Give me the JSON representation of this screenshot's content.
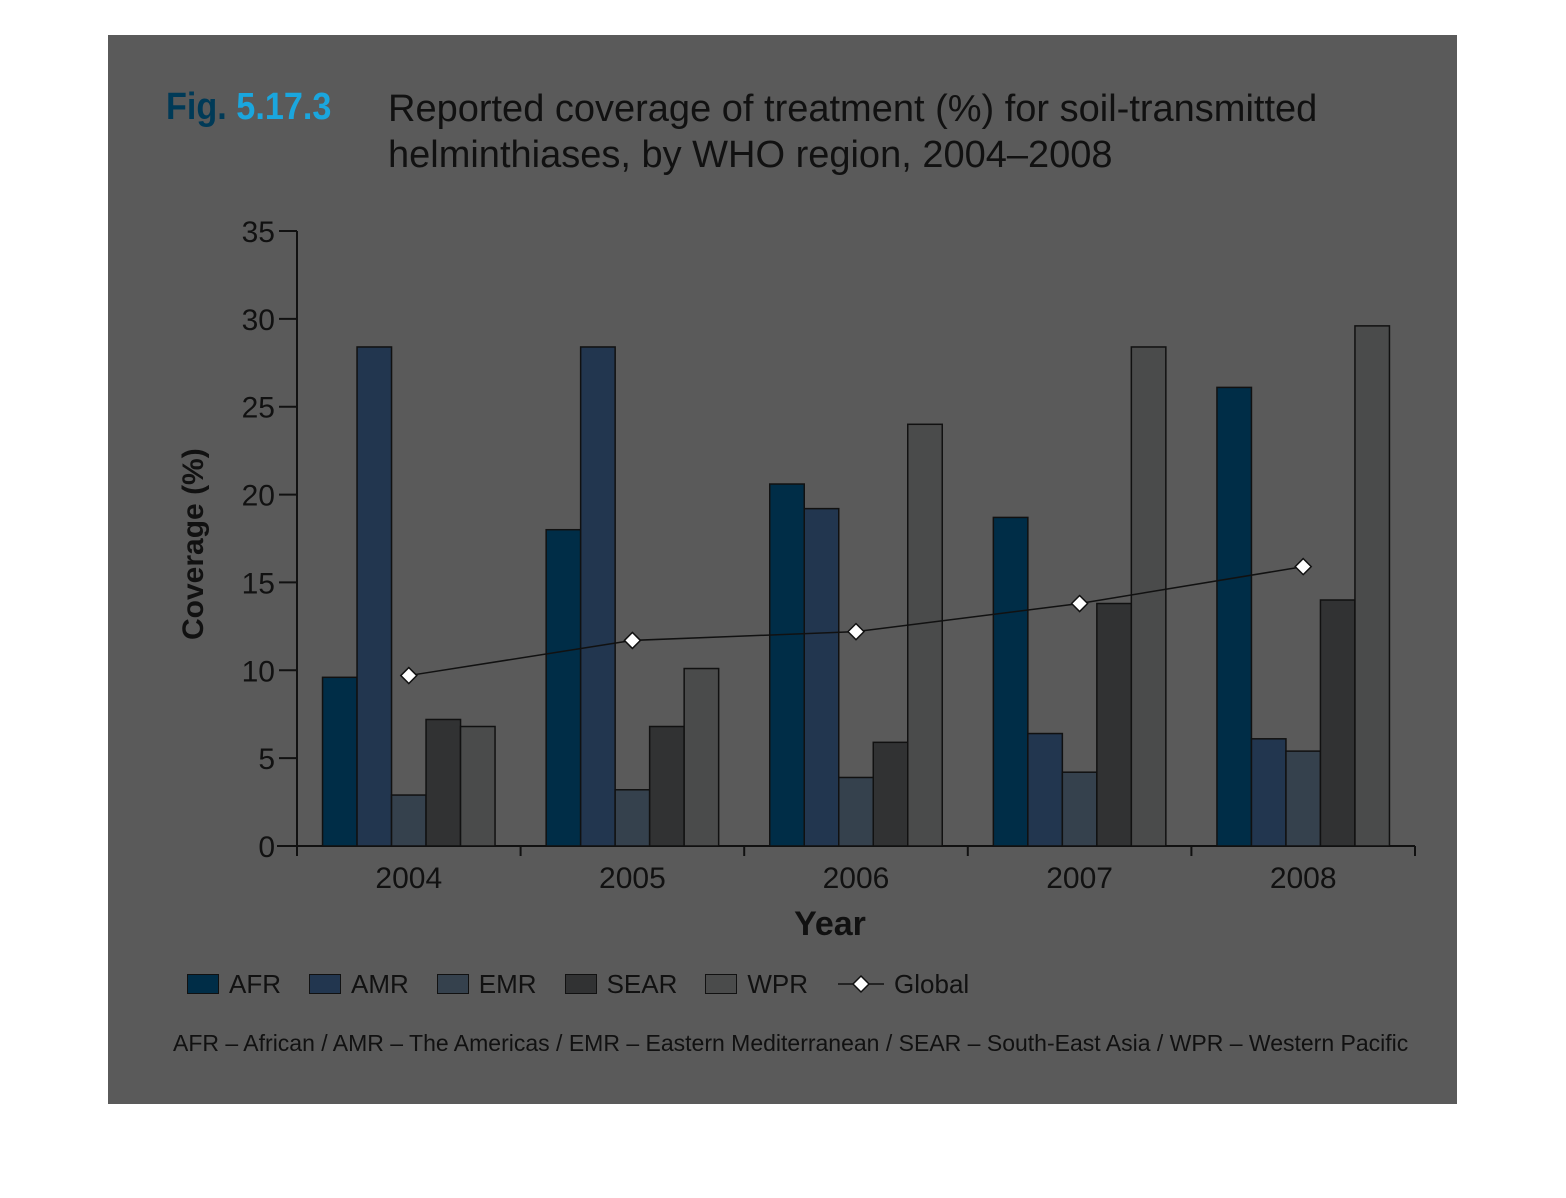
{
  "figure": {
    "label_prefix": "Fig.",
    "label_number": "5.17.3",
    "title_line1": "Reported coverage of treatment (%) for soil-transmitted",
    "title_line2": "helminthiases, by WHO region, 2004–2008",
    "footnote": "AFR – African / AMR – The Americas / EMR – Eastern Mediterranean / SEAR – South-East Asia / WPR – Western Pacific"
  },
  "colors": {
    "panel": "#5a5a5a",
    "AFR": "#002d47",
    "AMR": "#22364f",
    "EMR": "#35414d",
    "SEAR": "#313233",
    "WPR": "#4a4b4b",
    "line": "#111111"
  },
  "chart_data": {
    "type": "bar",
    "xlabel": "Year",
    "ylabel": "Coverage (%)",
    "categories": [
      "2004",
      "2005",
      "2006",
      "2007",
      "2008"
    ],
    "ylim": [
      0,
      35
    ],
    "yticks": [
      0,
      5,
      10,
      15,
      20,
      25,
      30,
      35
    ],
    "legend_position": "bottom",
    "series": [
      {
        "name": "AFR",
        "values": [
          9.6,
          18.0,
          20.6,
          18.7,
          26.1
        ]
      },
      {
        "name": "AMR",
        "values": [
          28.4,
          28.4,
          19.2,
          6.4,
          6.1
        ]
      },
      {
        "name": "EMR",
        "values": [
          2.9,
          3.2,
          3.9,
          4.2,
          5.4
        ]
      },
      {
        "name": "SEAR",
        "values": [
          7.2,
          6.8,
          5.9,
          13.8,
          14.0
        ]
      },
      {
        "name": "WPR",
        "values": [
          6.8,
          10.1,
          24.0,
          28.4,
          29.6
        ]
      }
    ],
    "line_series": {
      "name": "Global",
      "type": "line",
      "marker": "diamond",
      "values": [
        9.7,
        11.7,
        12.2,
        13.8,
        15.9
      ]
    }
  }
}
